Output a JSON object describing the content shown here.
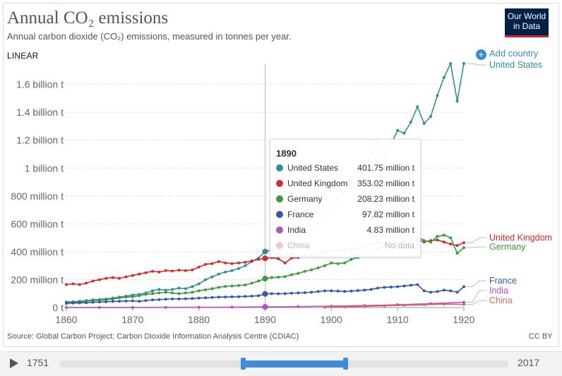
{
  "header": {
    "title": "Annual CO₂ emissions",
    "subtitle": "Annual carbon dioxide (CO₂) emissions, measured in tonnes per year.",
    "logo_line1": "Our World",
    "logo_line2": "in Data",
    "scale_label": "LINEAR",
    "add_country_label": "Add country"
  },
  "footer": {
    "source": "Source: Global Carbon Project; Carbon Dioxide Information Analysis Centre (CDIAC)",
    "license": "CC BY"
  },
  "timeline": {
    "start_label": "1751",
    "end_label": "2017"
  },
  "tooltip": {
    "year": "1890",
    "rows": [
      {
        "name": "United States",
        "value": "401.75 million t",
        "color": "#2e8f95"
      },
      {
        "name": "United Kingdom",
        "value": "353.02 million t",
        "color": "#d42a2a"
      },
      {
        "name": "Germany",
        "value": "208.23 million t",
        "color": "#3a9c3a"
      },
      {
        "name": "France",
        "value": "97.82 million t",
        "color": "#3459a8"
      },
      {
        "name": "India",
        "value": "4.83 million t",
        "color": "#b34fc0"
      },
      {
        "name": "China",
        "value": "No data",
        "color": "#e06666"
      }
    ]
  },
  "chart_data": {
    "type": "line",
    "title": "Annual CO₂ emissions",
    "y_ticks": [
      {
        "value": 0,
        "label": "0 t"
      },
      {
        "value": 200000000,
        "label": "200 million t"
      },
      {
        "value": 400000000,
        "label": "400 million t"
      },
      {
        "value": 600000000,
        "label": "600 million t"
      },
      {
        "value": 800000000,
        "label": "800 million t"
      },
      {
        "value": 1000000000,
        "label": "1 billion t"
      },
      {
        "value": 1200000000,
        "label": "1.2 billion t"
      },
      {
        "value": 1400000000,
        "label": "1.4 billion t"
      },
      {
        "value": 1600000000,
        "label": "1.6 billion t"
      }
    ],
    "x_ticks": [
      1860,
      1870,
      1880,
      1890,
      1900,
      1910,
      1920
    ],
    "xlim": [
      1860,
      1920
    ],
    "ylim": [
      0,
      1750000000
    ],
    "grid": "horizontal",
    "hover_year": 1890,
    "series": [
      {
        "name": "United States",
        "color": "#2e8f95",
        "x": [
          1860,
          1861,
          1862,
          1863,
          1864,
          1865,
          1866,
          1867,
          1868,
          1869,
          1870,
          1871,
          1872,
          1873,
          1874,
          1875,
          1876,
          1877,
          1878,
          1879,
          1880,
          1881,
          1882,
          1883,
          1884,
          1885,
          1886,
          1887,
          1888,
          1889,
          1890,
          1891,
          1892,
          1893,
          1894,
          1895,
          1896,
          1897,
          1898,
          1899,
          1900,
          1901,
          1902,
          1903,
          1904,
          1905,
          1906,
          1907,
          1908,
          1909,
          1910,
          1911,
          1912,
          1913,
          1914,
          1915,
          1916,
          1917,
          1918,
          1919,
          1920
        ],
        "values": [
          40,
          42,
          45,
          50,
          55,
          58,
          62,
          68,
          75,
          82,
          90,
          95,
          105,
          120,
          130,
          125,
          130,
          140,
          135,
          150,
          170,
          200,
          220,
          240,
          255,
          265,
          280,
          300,
          330,
          355,
          402,
          410,
          450,
          470,
          440,
          520,
          530,
          560,
          600,
          680,
          720,
          780,
          840,
          940,
          900,
          1020,
          1100,
          1200,
          1080,
          1170,
          1270,
          1250,
          1330,
          1440,
          1320,
          1370,
          1520,
          1650,
          1750,
          1480,
          1750
        ]
      },
      {
        "name": "United Kingdom",
        "color": "#d42a2a",
        "x": [
          1860,
          1861,
          1862,
          1863,
          1864,
          1865,
          1866,
          1867,
          1868,
          1869,
          1870,
          1871,
          1872,
          1873,
          1874,
          1875,
          1876,
          1877,
          1878,
          1879,
          1880,
          1881,
          1882,
          1883,
          1884,
          1885,
          1886,
          1887,
          1888,
          1889,
          1890,
          1891,
          1892,
          1893,
          1894,
          1895,
          1896,
          1897,
          1898,
          1899,
          1900,
          1901,
          1902,
          1903,
          1904,
          1905,
          1906,
          1907,
          1908,
          1909,
          1910,
          1911,
          1912,
          1913,
          1914,
          1915,
          1916,
          1917,
          1918,
          1919,
          1920
        ],
        "values": [
          165,
          170,
          165,
          175,
          190,
          200,
          210,
          215,
          210,
          220,
          230,
          240,
          250,
          260,
          255,
          265,
          262,
          268,
          265,
          270,
          290,
          310,
          315,
          330,
          320,
          315,
          320,
          325,
          335,
          345,
          353,
          358,
          350,
          320,
          355,
          360,
          370,
          380,
          385,
          400,
          410,
          405,
          415,
          420,
          425,
          435,
          450,
          465,
          455,
          460,
          465,
          470,
          440,
          490,
          470,
          480,
          485,
          470,
          455,
          445,
          465
        ]
      },
      {
        "name": "Germany",
        "color": "#3a9c3a",
        "x": [
          1860,
          1861,
          1862,
          1863,
          1864,
          1865,
          1866,
          1867,
          1868,
          1869,
          1870,
          1871,
          1872,
          1873,
          1874,
          1875,
          1876,
          1877,
          1878,
          1879,
          1880,
          1881,
          1882,
          1883,
          1884,
          1885,
          1886,
          1887,
          1888,
          1889,
          1890,
          1891,
          1892,
          1893,
          1894,
          1895,
          1896,
          1897,
          1898,
          1899,
          1900,
          1901,
          1902,
          1903,
          1904,
          1905,
          1906,
          1907,
          1908,
          1909,
          1910,
          1911,
          1912,
          1913,
          1914,
          1915,
          1916,
          1917,
          1918,
          1919,
          1920
        ],
        "values": [
          35,
          38,
          40,
          45,
          50,
          52,
          55,
          62,
          70,
          75,
          78,
          85,
          95,
          100,
          105,
          110,
          105,
          100,
          105,
          110,
          120,
          128,
          135,
          145,
          152,
          155,
          158,
          162,
          175,
          190,
          208,
          215,
          218,
          222,
          235,
          245,
          260,
          270,
          285,
          300,
          320,
          315,
          320,
          345,
          360,
          370,
          400,
          420,
          440,
          445,
          460,
          480,
          470,
          510,
          480,
          470,
          510,
          520,
          500,
          390,
          430
        ]
      },
      {
        "name": "France",
        "color": "#3459a8",
        "x": [
          1860,
          1861,
          1862,
          1863,
          1864,
          1865,
          1866,
          1867,
          1868,
          1869,
          1870,
          1871,
          1872,
          1873,
          1874,
          1875,
          1876,
          1877,
          1878,
          1879,
          1880,
          1881,
          1882,
          1883,
          1884,
          1885,
          1886,
          1887,
          1888,
          1889,
          1890,
          1891,
          1892,
          1893,
          1894,
          1895,
          1896,
          1897,
          1898,
          1899,
          1900,
          1901,
          1902,
          1903,
          1904,
          1905,
          1906,
          1907,
          1908,
          1909,
          1910,
          1911,
          1912,
          1913,
          1914,
          1915,
          1916,
          1917,
          1918,
          1919,
          1920
        ],
        "values": [
          30,
          32,
          33,
          35,
          38,
          40,
          42,
          44,
          45,
          47,
          48,
          45,
          50,
          55,
          57,
          60,
          62,
          62,
          63,
          65,
          68,
          70,
          73,
          75,
          76,
          77,
          78,
          80,
          82,
          85,
          98,
          100,
          99,
          100,
          103,
          105,
          107,
          110,
          115,
          120,
          120,
          118,
          116,
          118,
          122,
          125,
          130,
          140,
          145,
          147,
          150,
          155,
          160,
          165,
          120,
          110,
          115,
          125,
          120,
          110,
          150
        ]
      },
      {
        "name": "India",
        "color": "#b34fc0",
        "x": [
          1860,
          1865,
          1870,
          1875,
          1880,
          1885,
          1890,
          1895,
          1900,
          1905,
          1910,
          1915,
          1920
        ],
        "values": [
          0.5,
          0.8,
          1,
          1.5,
          2,
          3,
          4.83,
          7,
          10,
          14,
          20,
          28,
          38
        ]
      },
      {
        "name": "China",
        "color": "#e06666",
        "x": [
          1899,
          1902,
          1905,
          1908,
          1911,
          1914,
          1917,
          1920
        ],
        "values": [
          2,
          5,
          8,
          12,
          16,
          20,
          25,
          22
        ]
      }
    ]
  }
}
